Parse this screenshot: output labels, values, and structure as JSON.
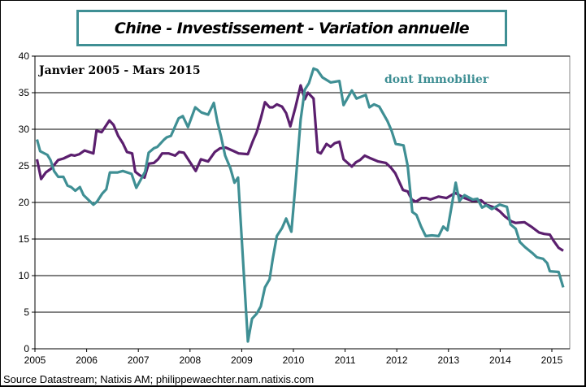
{
  "chart_data": {
    "type": "line",
    "title": "Chine - Investissement  - Variation annuelle",
    "subtitle": "Janvier 2005 - Mars 2015",
    "annotation": "dont Immobilier",
    "source": "Source Datastream; Natixis AM; philippewaechter.nam.natixis.com",
    "xlim": [
      2005,
      2015.35
    ],
    "ylim": [
      0,
      40
    ],
    "x_ticks": [
      2005,
      2006,
      2007,
      2008,
      2009,
      2010,
      2011,
      2012,
      2013,
      2014,
      2015
    ],
    "y_ticks": [
      0,
      5,
      10,
      15,
      20,
      25,
      30,
      35,
      40
    ],
    "grid": "horizontal",
    "colors": {
      "total": "#5b1f6e",
      "immobilier": "#3f8f94",
      "title_border": "#3f8f94"
    },
    "series": [
      {
        "key": "total",
        "points": [
          [
            2005.04,
            25.9
          ],
          [
            2005.12,
            23.2
          ],
          [
            2005.21,
            24.1
          ],
          [
            2005.31,
            24.6
          ],
          [
            2005.45,
            25.8
          ],
          [
            2005.55,
            26
          ],
          [
            2005.7,
            26.5
          ],
          [
            2005.77,
            26.4
          ],
          [
            2005.86,
            26.6
          ],
          [
            2005.96,
            27.1
          ],
          [
            2006.13,
            26.7
          ],
          [
            2006.19,
            29.8
          ],
          [
            2006.29,
            29.6
          ],
          [
            2006.44,
            31.2
          ],
          [
            2006.52,
            30.6
          ],
          [
            2006.61,
            29.1
          ],
          [
            2006.7,
            28.1
          ],
          [
            2006.78,
            26.9
          ],
          [
            2006.88,
            26.7
          ],
          [
            2006.94,
            24.2
          ],
          [
            2007.03,
            23.7
          ],
          [
            2007.12,
            23.4
          ],
          [
            2007.2,
            25.3
          ],
          [
            2007.3,
            25.4
          ],
          [
            2007.38,
            25.9
          ],
          [
            2007.46,
            26.7
          ],
          [
            2007.59,
            26.7
          ],
          [
            2007.71,
            26.4
          ],
          [
            2007.79,
            26.9
          ],
          [
            2007.88,
            26.8
          ],
          [
            2008.11,
            24.3
          ],
          [
            2008.21,
            25.9
          ],
          [
            2008.35,
            25.6
          ],
          [
            2008.48,
            26.9
          ],
          [
            2008.58,
            27.4
          ],
          [
            2008.69,
            27.5
          ],
          [
            2008.85,
            27
          ],
          [
            2008.94,
            26.7
          ],
          [
            2009.12,
            26.6
          ],
          [
            2009.21,
            28.3
          ],
          [
            2009.29,
            29.6
          ],
          [
            2009.37,
            31.5
          ],
          [
            2009.45,
            33.7
          ],
          [
            2009.54,
            33
          ],
          [
            2009.6,
            33
          ],
          [
            2009.68,
            33.4
          ],
          [
            2009.78,
            33.1
          ],
          [
            2009.86,
            32.2
          ],
          [
            2009.94,
            30.4
          ],
          [
            2010.04,
            33
          ],
          [
            2010.14,
            36
          ],
          [
            2010.22,
            34.1
          ],
          [
            2010.28,
            35
          ],
          [
            2010.39,
            34.2
          ],
          [
            2010.47,
            26.9
          ],
          [
            2010.53,
            26.7
          ],
          [
            2010.64,
            28
          ],
          [
            2010.72,
            27.6
          ],
          [
            2010.8,
            28.1
          ],
          [
            2010.89,
            28.3
          ],
          [
            2010.97,
            25.9
          ],
          [
            2011.05,
            25.4
          ],
          [
            2011.13,
            24.9
          ],
          [
            2011.21,
            25.5
          ],
          [
            2011.29,
            25.8
          ],
          [
            2011.38,
            26.4
          ],
          [
            2011.47,
            26.1
          ],
          [
            2011.64,
            25.6
          ],
          [
            2011.79,
            25.4
          ],
          [
            2011.88,
            24.8
          ],
          [
            2011.97,
            24
          ],
          [
            2012.12,
            21.7
          ],
          [
            2012.21,
            21.5
          ],
          [
            2012.29,
            20.4
          ],
          [
            2012.37,
            20.1
          ],
          [
            2012.48,
            20.6
          ],
          [
            2012.57,
            20.6
          ],
          [
            2012.65,
            20.4
          ],
          [
            2012.81,
            20.8
          ],
          [
            2012.96,
            20.6
          ],
          [
            2013.13,
            21.3
          ],
          [
            2013.31,
            20.6
          ],
          [
            2013.47,
            20.2
          ],
          [
            2013.63,
            20.3
          ],
          [
            2013.73,
            19.7
          ],
          [
            2013.89,
            19.3
          ],
          [
            2013.99,
            18.8
          ],
          [
            2014.09,
            18.1
          ],
          [
            2014.22,
            17.4
          ],
          [
            2014.3,
            17.2
          ],
          [
            2014.47,
            17.3
          ],
          [
            2014.62,
            16.6
          ],
          [
            2014.75,
            15.9
          ],
          [
            2014.85,
            15.7
          ],
          [
            2014.96,
            15.6
          ],
          [
            2015.03,
            14.8
          ],
          [
            2015.13,
            13.8
          ],
          [
            2015.22,
            13.4
          ]
        ]
      },
      {
        "key": "immobilier",
        "name": "dont Immobilier",
        "points": [
          [
            2005.04,
            28.6
          ],
          [
            2005.1,
            27
          ],
          [
            2005.24,
            26.5
          ],
          [
            2005.3,
            25.8
          ],
          [
            2005.37,
            24.3
          ],
          [
            2005.45,
            23.5
          ],
          [
            2005.55,
            23.5
          ],
          [
            2005.63,
            22.3
          ],
          [
            2005.7,
            22.1
          ],
          [
            2005.78,
            21.6
          ],
          [
            2005.87,
            22.1
          ],
          [
            2005.94,
            21
          ],
          [
            2006.13,
            19.7
          ],
          [
            2006.2,
            20.1
          ],
          [
            2006.3,
            21.2
          ],
          [
            2006.38,
            21.8
          ],
          [
            2006.45,
            24.1
          ],
          [
            2006.6,
            24.1
          ],
          [
            2006.7,
            24.3
          ],
          [
            2006.87,
            23.9
          ],
          [
            2006.96,
            22
          ],
          [
            2007.13,
            24.2
          ],
          [
            2007.2,
            26.8
          ],
          [
            2007.3,
            27.4
          ],
          [
            2007.37,
            27.6
          ],
          [
            2007.5,
            28.6
          ],
          [
            2007.55,
            28.9
          ],
          [
            2007.63,
            29.1
          ],
          [
            2007.78,
            31.5
          ],
          [
            2007.86,
            31.8
          ],
          [
            2007.96,
            30.3
          ],
          [
            2008.1,
            33
          ],
          [
            2008.22,
            32.3
          ],
          [
            2008.35,
            32
          ],
          [
            2008.46,
            33.6
          ],
          [
            2008.53,
            31
          ],
          [
            2008.6,
            29
          ],
          [
            2008.68,
            26.4
          ],
          [
            2008.78,
            24.7
          ],
          [
            2008.86,
            22.7
          ],
          [
            2008.93,
            23.4
          ],
          [
            2009.12,
            1
          ],
          [
            2009.2,
            4.1
          ],
          [
            2009.29,
            4.8
          ],
          [
            2009.37,
            5.8
          ],
          [
            2009.45,
            8.4
          ],
          [
            2009.54,
            9.5
          ],
          [
            2009.6,
            12.3
          ],
          [
            2009.68,
            15.4
          ],
          [
            2009.78,
            16.5
          ],
          [
            2009.86,
            17.8
          ],
          [
            2009.96,
            16
          ],
          [
            2010.04,
            22.4
          ],
          [
            2010.14,
            31.3
          ],
          [
            2010.22,
            35.4
          ],
          [
            2010.3,
            36.3
          ],
          [
            2010.39,
            38.3
          ],
          [
            2010.46,
            38.1
          ],
          [
            2010.56,
            37.1
          ],
          [
            2010.72,
            36.4
          ],
          [
            2010.89,
            36.6
          ],
          [
            2010.97,
            33.3
          ],
          [
            2011.13,
            35.3
          ],
          [
            2011.22,
            34.2
          ],
          [
            2011.4,
            34.7
          ],
          [
            2011.47,
            33
          ],
          [
            2011.56,
            33.4
          ],
          [
            2011.66,
            33.1
          ],
          [
            2011.82,
            31.1
          ],
          [
            2011.9,
            29.8
          ],
          [
            2011.98,
            28
          ],
          [
            2012.13,
            27.8
          ],
          [
            2012.21,
            25
          ],
          [
            2012.3,
            18.7
          ],
          [
            2012.38,
            18.3
          ],
          [
            2012.47,
            16.7
          ],
          [
            2012.56,
            15.4
          ],
          [
            2012.68,
            15.5
          ],
          [
            2012.81,
            15.4
          ],
          [
            2012.9,
            16.7
          ],
          [
            2012.98,
            16.2
          ],
          [
            2013.14,
            22.7
          ],
          [
            2013.21,
            20.2
          ],
          [
            2013.31,
            21
          ],
          [
            2013.47,
            20.4
          ],
          [
            2013.56,
            20.5
          ],
          [
            2013.65,
            19.3
          ],
          [
            2013.73,
            19.6
          ],
          [
            2013.84,
            19.1
          ],
          [
            2013.99,
            19.7
          ],
          [
            2014.13,
            19.4
          ],
          [
            2014.2,
            17
          ],
          [
            2014.3,
            16.4
          ],
          [
            2014.38,
            14.6
          ],
          [
            2014.48,
            13.9
          ],
          [
            2014.62,
            13.1
          ],
          [
            2014.71,
            12.5
          ],
          [
            2014.83,
            12.3
          ],
          [
            2014.91,
            11.7
          ],
          [
            2014.96,
            10.6
          ],
          [
            2015.13,
            10.5
          ],
          [
            2015.22,
            8.4
          ]
        ]
      }
    ]
  }
}
